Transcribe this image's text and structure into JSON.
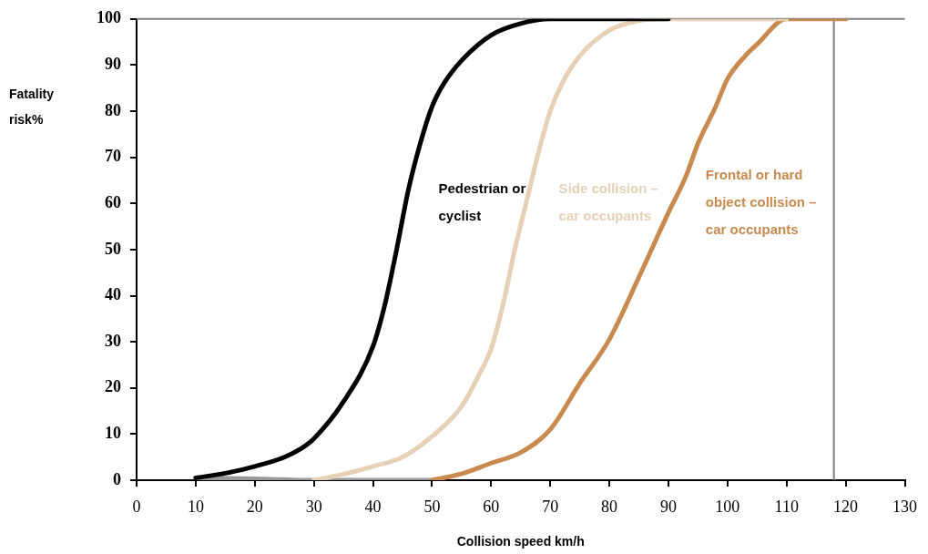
{
  "chart_data": {
    "type": "line",
    "xlabel": "Collision speed km/h",
    "ylabel": "Fatality risk%",
    "xlim": [
      0,
      130
    ],
    "xticks": [
      0,
      10,
      20,
      30,
      40,
      50,
      60,
      70,
      80,
      90,
      100,
      110,
      120,
      130
    ],
    "ylim": [
      0,
      100
    ],
    "yticks": [
      0,
      10,
      20,
      30,
      40,
      50,
      60,
      70,
      80,
      90,
      100
    ],
    "grid": false,
    "legend": false,
    "marker": "none",
    "line_style": "solid",
    "series": [
      {
        "name": "Pedestrian or cyclist",
        "color": "#000000",
        "x": [
          10,
          15,
          20,
          25,
          28,
          30,
          35,
          40,
          42,
          44,
          46,
          48,
          50,
          52,
          55,
          60,
          65,
          70,
          75,
          80,
          90
        ],
        "values": [
          0.5,
          1.5,
          3,
          5,
          7,
          9,
          17,
          29,
          38,
          50,
          63,
          73,
          81,
          86,
          91,
          96.5,
          99,
          100,
          100,
          100,
          100
        ]
      },
      {
        "name": "Side collision – car occupants",
        "color": "#e6d0b6",
        "x": [
          30,
          35,
          40,
          45,
          50,
          55,
          58,
          60,
          62,
          64,
          66,
          68,
          70,
          72,
          75,
          80,
          85,
          90,
          110
        ],
        "values": [
          0,
          1.3,
          3,
          5,
          9.5,
          16,
          23,
          28.5,
          38,
          50,
          60.5,
          71,
          80,
          86,
          92,
          97.5,
          99.6,
          100,
          100
        ]
      },
      {
        "name": "Frontal or hard object collision – car occupants",
        "color": "#c88a4e",
        "x": [
          50,
          55,
          60,
          65,
          70,
          75,
          80,
          85,
          90,
          93,
          95,
          98,
          100,
          103,
          105,
          110,
          120
        ],
        "values": [
          0,
          1.4,
          3.7,
          6,
          11,
          21,
          30.5,
          44,
          58,
          66,
          73,
          81,
          87,
          92,
          94.5,
          100,
          100
        ]
      },
      {
        "color": "#999999",
        "x": [
          10,
          20,
          30,
          40,
          45,
          50
        ],
        "values": [
          0.5,
          0.3,
          0,
          0,
          0,
          0
        ]
      }
    ],
    "ref_lines": [
      {
        "axis": "x",
        "value": 118,
        "color": "#808080"
      },
      {
        "axis": "y",
        "value": 100,
        "color": "#808080"
      }
    ]
  }
}
